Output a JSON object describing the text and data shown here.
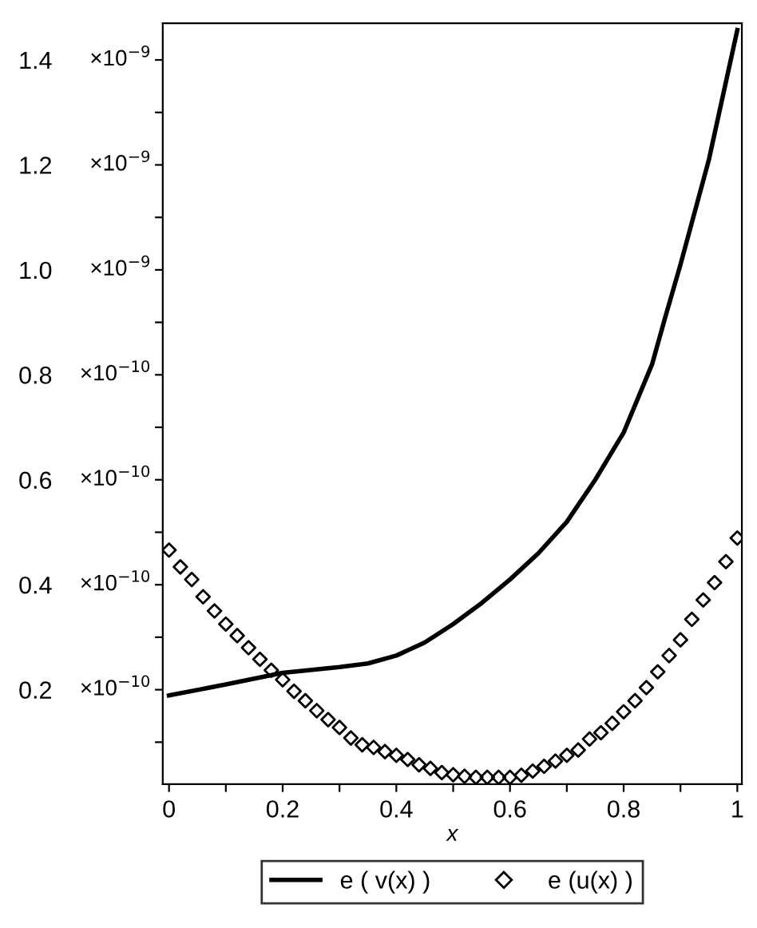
{
  "chart_data": {
    "type": "line",
    "xlabel": "x",
    "xlim": [
      -0.011,
      1.008
    ],
    "ylim": [
      0.02,
      1.47
    ],
    "xticks": [
      0,
      {
        "value": 0.1,
        "label": null
      },
      0.2,
      {
        "value": 0.3,
        "label": null
      },
      0.4,
      {
        "value": 0.5,
        "label": null
      },
      0.6,
      {
        "value": 0.7,
        "label": null
      },
      0.8,
      {
        "value": 0.9,
        "label": null
      },
      1
    ],
    "yticks": [
      {
        "value": 0.1,
        "label": null
      },
      {
        "value": 0.2,
        "label": "0.2"
      },
      {
        "value": 0.3,
        "label": null
      },
      {
        "value": 0.4,
        "label": "0.4"
      },
      {
        "value": 0.5,
        "label": null
      },
      {
        "value": 0.6,
        "label": "0.6"
      },
      {
        "value": 0.7,
        "label": null
      },
      {
        "value": 0.8,
        "label": "0.8"
      },
      {
        "value": 0.9,
        "label": null
      },
      {
        "value": 1.0,
        "label": "1.0"
      },
      {
        "value": 1.1,
        "label": null
      },
      {
        "value": 1.2,
        "label": "1.2"
      },
      {
        "value": 1.3,
        "label": null
      },
      {
        "value": 1.4,
        "label": "1.4"
      }
    ],
    "annotations": [
      "×10$^{−10}$",
      "×10$^{−10}$",
      "×10$^{−10}$",
      "×10$^{−10}$",
      "×10$^{−9}$",
      "×10$^{−9}$",
      "×10$^{−9}$"
    ],
    "grid": false,
    "legend": "bottom",
    "series": [
      {
        "name": "e ( v(x) )",
        "color": "#000000",
        "marker": "none",
        "line_style": "solid",
        "x": [
          0,
          0.1,
          0.2,
          0.3,
          0.35,
          0.4,
          0.45,
          0.5,
          0.55,
          0.6,
          0.65,
          0.7,
          0.75,
          0.8,
          0.85,
          0.873,
          0.9,
          0.95,
          1.0
        ],
        "values": [
          0.189,
          0.21,
          0.232,
          0.243,
          0.25,
          0.265,
          0.29,
          0.325,
          0.365,
          0.41,
          0.46,
          0.52,
          0.6,
          0.69,
          0.82,
          0.909,
          1.01,
          1.21,
          1.457
        ]
      },
      {
        "name": "e (u(x) )",
        "color": "#000000",
        "type": "scatter",
        "marker": "diamond",
        "x": [
          0,
          0.02,
          0.04,
          0.06,
          0.08,
          0.1,
          0.12,
          0.14,
          0.16,
          0.18,
          0.2,
          0.22,
          0.24,
          0.26,
          0.28,
          0.3,
          0.32,
          0.34,
          0.36,
          0.38,
          0.4,
          0.42,
          0.44,
          0.46,
          0.48,
          0.5,
          0.52,
          0.54,
          0.56,
          0.58,
          0.6,
          0.62,
          0.64,
          0.66,
          0.68,
          0.7,
          0.72,
          0.74,
          0.76,
          0.78,
          0.8,
          0.82,
          0.84,
          0.86,
          0.88,
          0.9,
          0.92,
          0.94,
          0.96,
          0.98,
          1.0
        ],
        "values": [
          0.466,
          0.434,
          0.41,
          0.377,
          0.35,
          0.325,
          0.303,
          0.28,
          0.258,
          0.237,
          0.219,
          0.197,
          0.179,
          0.16,
          0.143,
          0.128,
          0.108,
          0.095,
          0.09,
          0.082,
          0.075,
          0.067,
          0.057,
          0.05,
          0.042,
          0.038,
          0.035,
          0.033,
          0.033,
          0.033,
          0.033,
          0.037,
          0.045,
          0.054,
          0.064,
          0.075,
          0.085,
          0.106,
          0.118,
          0.136,
          0.158,
          0.179,
          0.204,
          0.234,
          0.265,
          0.295,
          0.334,
          0.371,
          0.404,
          0.444,
          0.489
        ]
      }
    ]
  }
}
